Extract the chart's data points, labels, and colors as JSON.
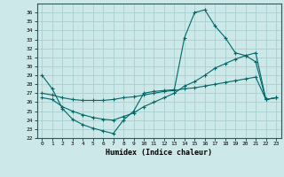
{
  "xlabel": "Humidex (Indice chaleur)",
  "bg_color": "#cce8e8",
  "grid_color": "#aacece",
  "line_color": "#006868",
  "xlim": [
    -0.5,
    23.5
  ],
  "ylim": [
    22,
    37
  ],
  "xticks": [
    0,
    1,
    2,
    3,
    4,
    5,
    6,
    7,
    8,
    9,
    10,
    11,
    12,
    13,
    14,
    15,
    16,
    17,
    18,
    19,
    20,
    21,
    22,
    23
  ],
  "yticks": [
    22,
    23,
    24,
    25,
    26,
    27,
    28,
    29,
    30,
    31,
    32,
    33,
    34,
    35,
    36
  ],
  "curve1_x": [
    0,
    1,
    2,
    3,
    4,
    5,
    6,
    7,
    8,
    9,
    10,
    11,
    12,
    13,
    14,
    15,
    16,
    17,
    18,
    19,
    20,
    21,
    22,
    23
  ],
  "curve1_y": [
    29,
    27.5,
    25.3,
    24.1,
    23.5,
    23.1,
    22.8,
    22.5,
    24.0,
    25.0,
    27.0,
    27.2,
    27.3,
    27.4,
    33.2,
    36.0,
    36.3,
    34.5,
    33.2,
    31.5,
    31.2,
    30.5,
    26.3,
    26.5
  ],
  "curve2_x": [
    0,
    1,
    2,
    3,
    4,
    5,
    6,
    7,
    8,
    9,
    10,
    11,
    12,
    13,
    14,
    15,
    16,
    17,
    18,
    19,
    20,
    21,
    22,
    23
  ],
  "curve2_y": [
    27.0,
    26.8,
    26.5,
    26.3,
    26.2,
    26.2,
    26.2,
    26.3,
    26.5,
    26.6,
    26.8,
    27.0,
    27.2,
    27.3,
    27.5,
    27.6,
    27.8,
    28.0,
    28.2,
    28.4,
    28.6,
    28.8,
    26.3,
    26.5
  ],
  "curve3_x": [
    0,
    1,
    2,
    3,
    4,
    5,
    6,
    7,
    8,
    9,
    10,
    11,
    12,
    13,
    14,
    15,
    16,
    17,
    18,
    19,
    20,
    21,
    22,
    23
  ],
  "curve3_y": [
    26.5,
    26.3,
    25.5,
    25.0,
    24.6,
    24.3,
    24.1,
    24.0,
    24.4,
    24.8,
    25.5,
    26.0,
    26.5,
    27.0,
    27.8,
    28.3,
    29.0,
    29.8,
    30.3,
    30.8,
    31.2,
    31.5,
    26.3,
    26.5
  ]
}
